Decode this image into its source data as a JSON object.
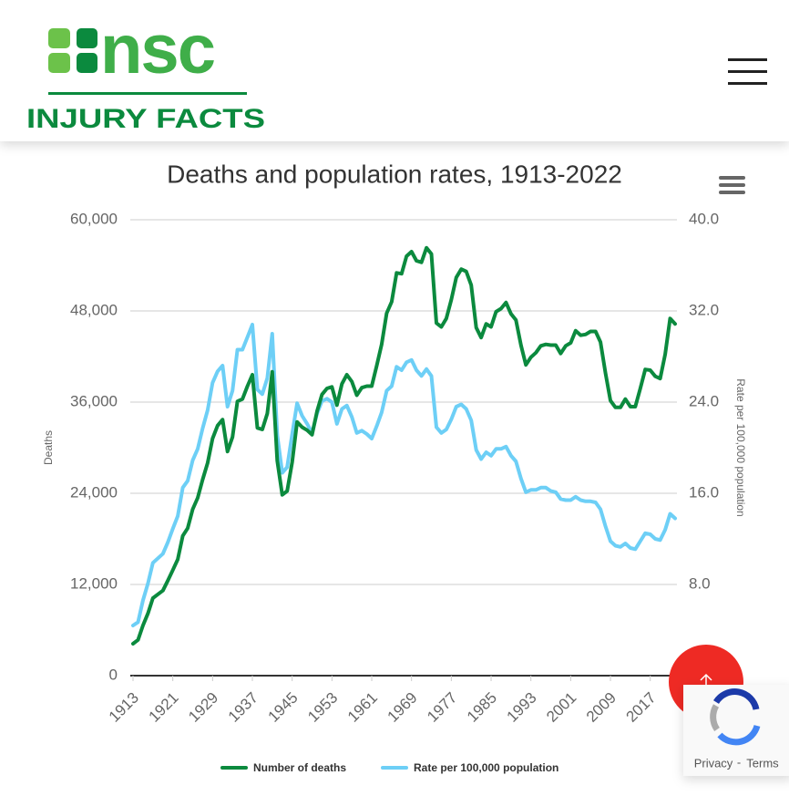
{
  "header": {
    "logo": {
      "name": "nsc",
      "tagline": "INJURY FACTS"
    }
  },
  "chart_data": {
    "type": "line",
    "title": "Deaths and population rates, 1913-2022",
    "y_label": "Deaths",
    "y2_label": "Rate per 100,000 population",
    "x": [
      1913,
      1914,
      1915,
      1916,
      1917,
      1918,
      1919,
      1920,
      1921,
      1922,
      1923,
      1924,
      1925,
      1926,
      1927,
      1928,
      1929,
      1930,
      1931,
      1932,
      1933,
      1934,
      1935,
      1936,
      1937,
      1938,
      1939,
      1940,
      1941,
      1942,
      1943,
      1944,
      1945,
      1946,
      1947,
      1948,
      1949,
      1950,
      1951,
      1952,
      1953,
      1954,
      1955,
      1956,
      1957,
      1958,
      1959,
      1960,
      1961,
      1962,
      1963,
      1964,
      1965,
      1966,
      1967,
      1968,
      1969,
      1970,
      1971,
      1972,
      1973,
      1974,
      1975,
      1976,
      1977,
      1978,
      1979,
      1980,
      1981,
      1982,
      1983,
      1984,
      1985,
      1986,
      1987,
      1988,
      1989,
      1990,
      1991,
      1992,
      1993,
      1994,
      1995,
      1996,
      1997,
      1998,
      1999,
      2000,
      2001,
      2002,
      2003,
      2004,
      2005,
      2006,
      2007,
      2008,
      2009,
      2010,
      2011,
      2012,
      2013,
      2014,
      2015,
      2016,
      2017,
      2018,
      2019,
      2020,
      2021,
      2022
    ],
    "xlim": [
      1913,
      2022
    ],
    "xticks": [
      1913,
      1921,
      1929,
      1937,
      1945,
      1953,
      1961,
      1969,
      1977,
      1985,
      1993,
      2001,
      2009,
      2017
    ],
    "ylim": [
      0,
      60000
    ],
    "yticks": [
      0,
      {
        "value": 12000,
        "label": "12,000"
      },
      {
        "value": 24000,
        "label": "24,000"
      },
      {
        "value": 36000,
        "label": "36,000"
      },
      {
        "value": 48000,
        "label": "48,000"
      },
      {
        "value": 60000,
        "label": "60,000"
      }
    ],
    "y2lim": [
      0,
      40
    ],
    "y2ticks": [
      {
        "value": 8,
        "label": "8.0"
      },
      {
        "value": 16,
        "label": "16.0"
      },
      {
        "value": 24,
        "label": "24.0"
      },
      {
        "value": 32,
        "label": "32.0"
      },
      {
        "value": 40,
        "label": "40.0"
      }
    ],
    "grid": true,
    "legend": "bottom",
    "series": [
      {
        "name": "Number of deaths",
        "color": "#0b8a3e",
        "values": [
          4200,
          4700,
          6600,
          8200,
          10200,
          10700,
          11200,
          12500,
          13900,
          15300,
          18400,
          19400,
          21900,
          23400,
          25800,
          28000,
          31200,
          32900,
          33700,
          29500,
          31400,
          36100,
          36400,
          38100,
          39600,
          32600,
          32400,
          34500,
          40000,
          28300,
          23800,
          24300,
          28100,
          33400,
          32700,
          32300,
          31700,
          34800,
          37000,
          37800,
          38000,
          35600,
          38400,
          39600,
          38700,
          36900,
          37900,
          38100,
          38100,
          40800,
          43600,
          47700,
          49200,
          53000,
          52900,
          55200,
          55800,
          54600,
          54400,
          56300,
          55500,
          46400,
          45900,
          47000,
          49500,
          52400,
          53500,
          53200,
          51400,
          45800,
          44500,
          46300,
          45900,
          47900,
          48300,
          49100,
          47600,
          46800,
          43500,
          40900,
          41900,
          42500,
          43400,
          43600,
          43500,
          43500,
          42400,
          43400,
          43800,
          45400,
          44800,
          44900,
          45300,
          45300,
          43900,
          39800,
          36200,
          35300,
          35300,
          36400,
          35400,
          35400,
          37800,
          40300,
          40200,
          39400,
          39100,
          42300,
          47000,
          46300
        ]
      },
      {
        "name": "Rate per 100,000 population",
        "color": "#6dcff6",
        "axis": "y2",
        "values": [
          4.4,
          4.7,
          6.6,
          8.1,
          9.9,
          10.3,
          10.7,
          11.7,
          12.9,
          14.0,
          16.5,
          17.1,
          18.9,
          19.9,
          21.7,
          23.3,
          25.7,
          26.7,
          27.2,
          23.6,
          25.0,
          28.6,
          28.6,
          29.7,
          30.8,
          25.1,
          24.7,
          26.1,
          30.0,
          21.1,
          17.8,
          18.3,
          21.2,
          23.9,
          22.8,
          22.1,
          21.3,
          23.0,
          24.1,
          24.3,
          24.0,
          22.1,
          23.4,
          23.7,
          22.7,
          21.3,
          21.5,
          21.2,
          20.8,
          21.9,
          23.1,
          25.0,
          25.4,
          27.1,
          26.8,
          27.5,
          27.7,
          26.8,
          26.3,
          26.9,
          26.3,
          21.8,
          21.3,
          21.6,
          22.5,
          23.6,
          23.8,
          23.4,
          22.4,
          19.8,
          19.0,
          19.6,
          19.3,
          19.9,
          19.9,
          20.1,
          19.3,
          18.8,
          17.3,
          16.1,
          16.3,
          16.3,
          16.5,
          16.5,
          16.2,
          16.1,
          15.5,
          15.4,
          15.4,
          15.7,
          15.4,
          15.3,
          15.3,
          15.2,
          14.6,
          13.1,
          11.8,
          11.4,
          11.3,
          11.6,
          11.2,
          11.1,
          11.8,
          12.5,
          12.4,
          12.0,
          11.9,
          12.8,
          14.2,
          13.8
        ]
      }
    ]
  },
  "recaptcha": {
    "privacy": "Privacy",
    "separator": "-",
    "terms": "Terms"
  }
}
